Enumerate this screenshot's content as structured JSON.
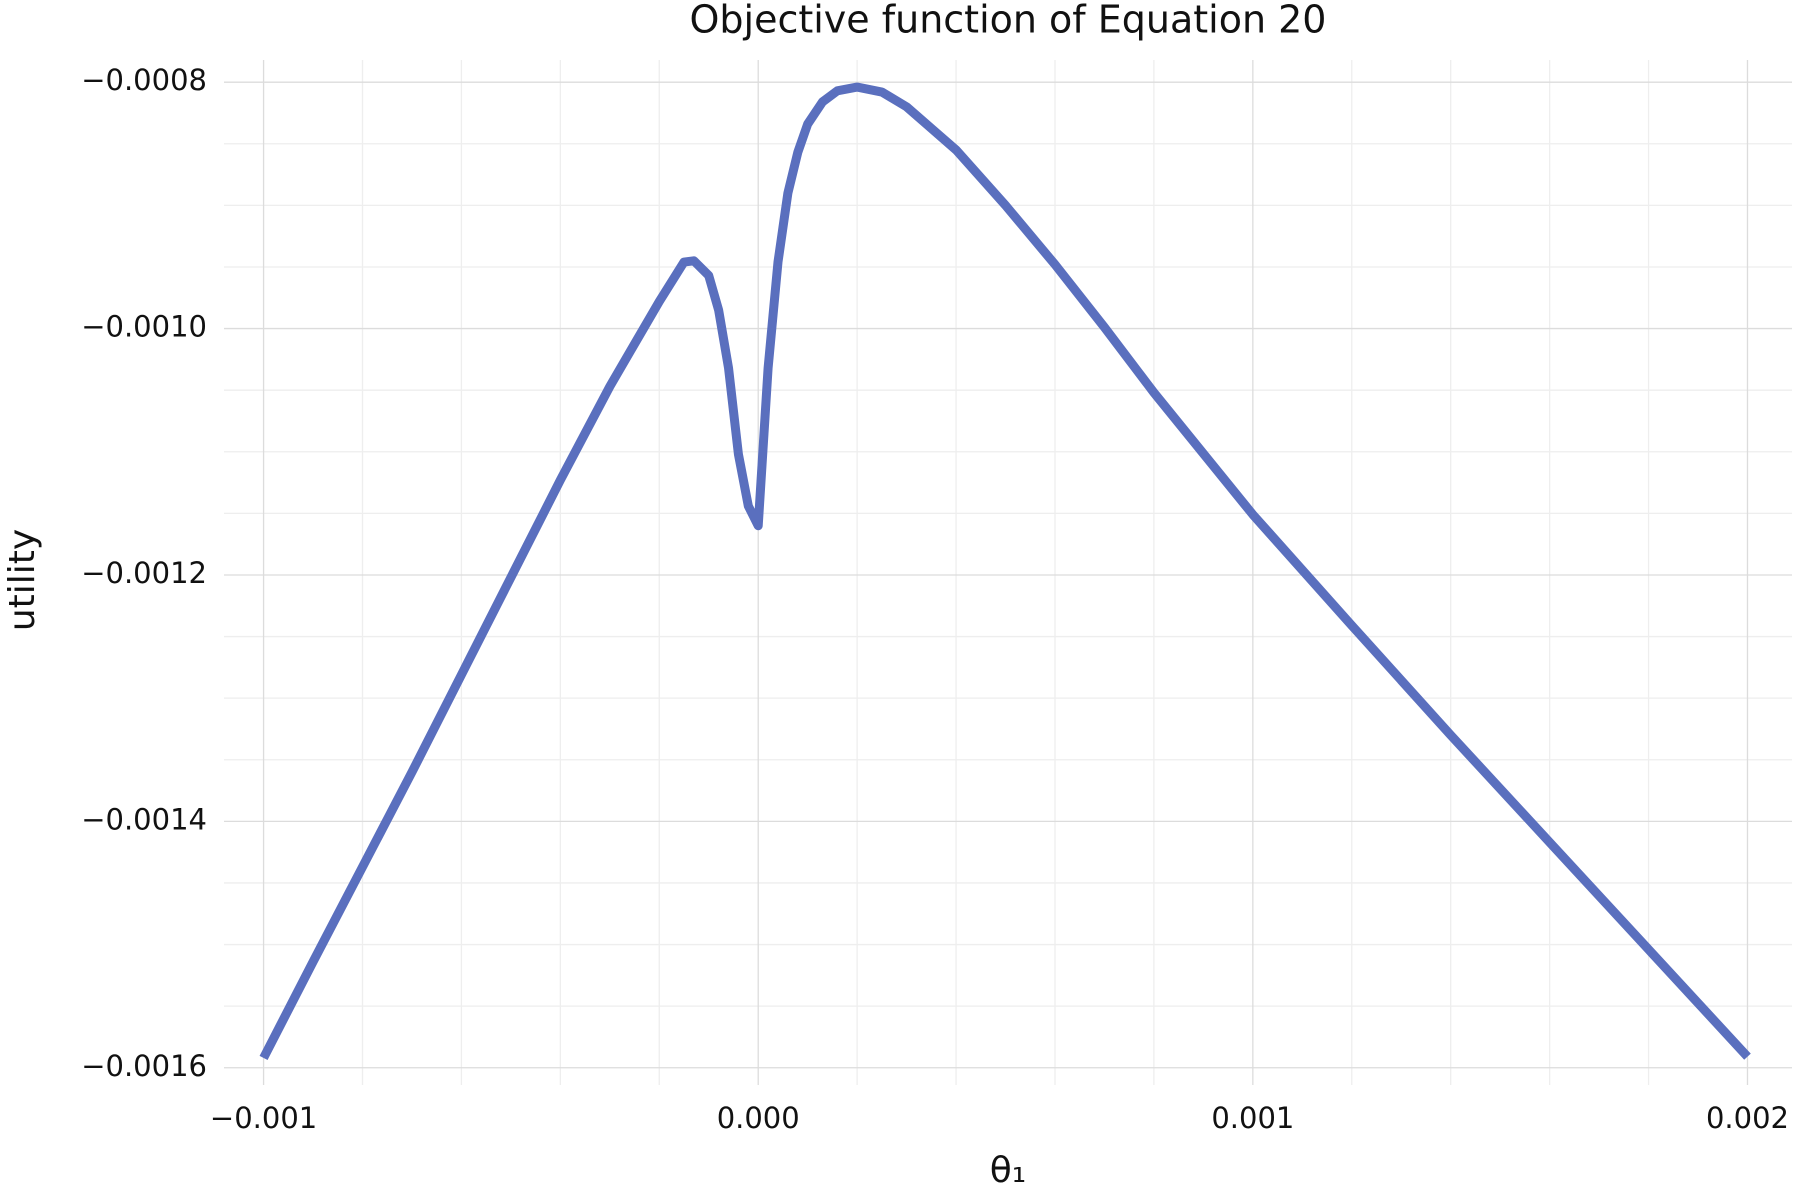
{
  "chart_data": {
    "type": "line",
    "title": "Objective function of Equation 20",
    "xlabel": "θ₁",
    "ylabel": "utility",
    "x": [
      -0.001,
      -0.0009,
      -0.0008,
      -0.0007,
      -0.0006,
      -0.0005,
      -0.0004,
      -0.0003,
      -0.0002,
      -0.00015,
      -0.00013,
      -0.0001,
      -8e-05,
      -6e-05,
      -4e-05,
      -2e-05,
      0,
      2e-05,
      4e-05,
      6e-05,
      8e-05,
      0.0001,
      0.00013,
      0.00016,
      0.0002,
      0.00025,
      0.0003,
      0.0004,
      0.0005,
      0.0006,
      0.0007,
      0.0008,
      0.001,
      0.0012,
      0.0014,
      0.0016,
      0.0018,
      0.002
    ],
    "values": [
      -0.001592,
      -0.001514,
      -0.001437,
      -0.00136,
      -0.001281,
      -0.001202,
      -0.001123,
      -0.001047,
      -0.000978,
      -0.000946,
      -0.000945,
      -0.000957,
      -0.000985,
      -0.001032,
      -0.001102,
      -0.001144,
      -0.00116,
      -0.001032,
      -0.000946,
      -0.00089,
      -0.000857,
      -0.000834,
      -0.000816,
      -0.000807,
      -0.000804,
      -0.000808,
      -0.00082,
      -0.000855,
      -0.0009,
      -0.000948,
      -0.000999,
      -0.001052,
      -0.001151,
      -0.001241,
      -0.00133,
      -0.001417,
      -0.001504,
      -0.001591
    ],
    "color": "#5a6fbe",
    "xlim": [
      -0.00108,
      0.00209
    ],
    "ylim": [
      -0.001614,
      -0.000782
    ],
    "xticks": [
      {
        "value": -0.001,
        "label": "−0.001"
      },
      {
        "value": 0,
        "label": "0.000"
      },
      {
        "value": 0.001,
        "label": "0.001"
      },
      {
        "value": 0.002,
        "label": "0.002"
      }
    ],
    "yticks": [
      {
        "value": -0.0016,
        "label": "−0.0016"
      },
      {
        "value": -0.0014,
        "label": "−0.0014"
      },
      {
        "value": -0.0012,
        "label": "−0.0012"
      },
      {
        "value": -0.001,
        "label": "−0.0010"
      },
      {
        "value": -0.0008,
        "label": "−0.0008"
      }
    ],
    "grid": true,
    "minor_grid": {
      "x": 5,
      "y": 4
    }
  }
}
